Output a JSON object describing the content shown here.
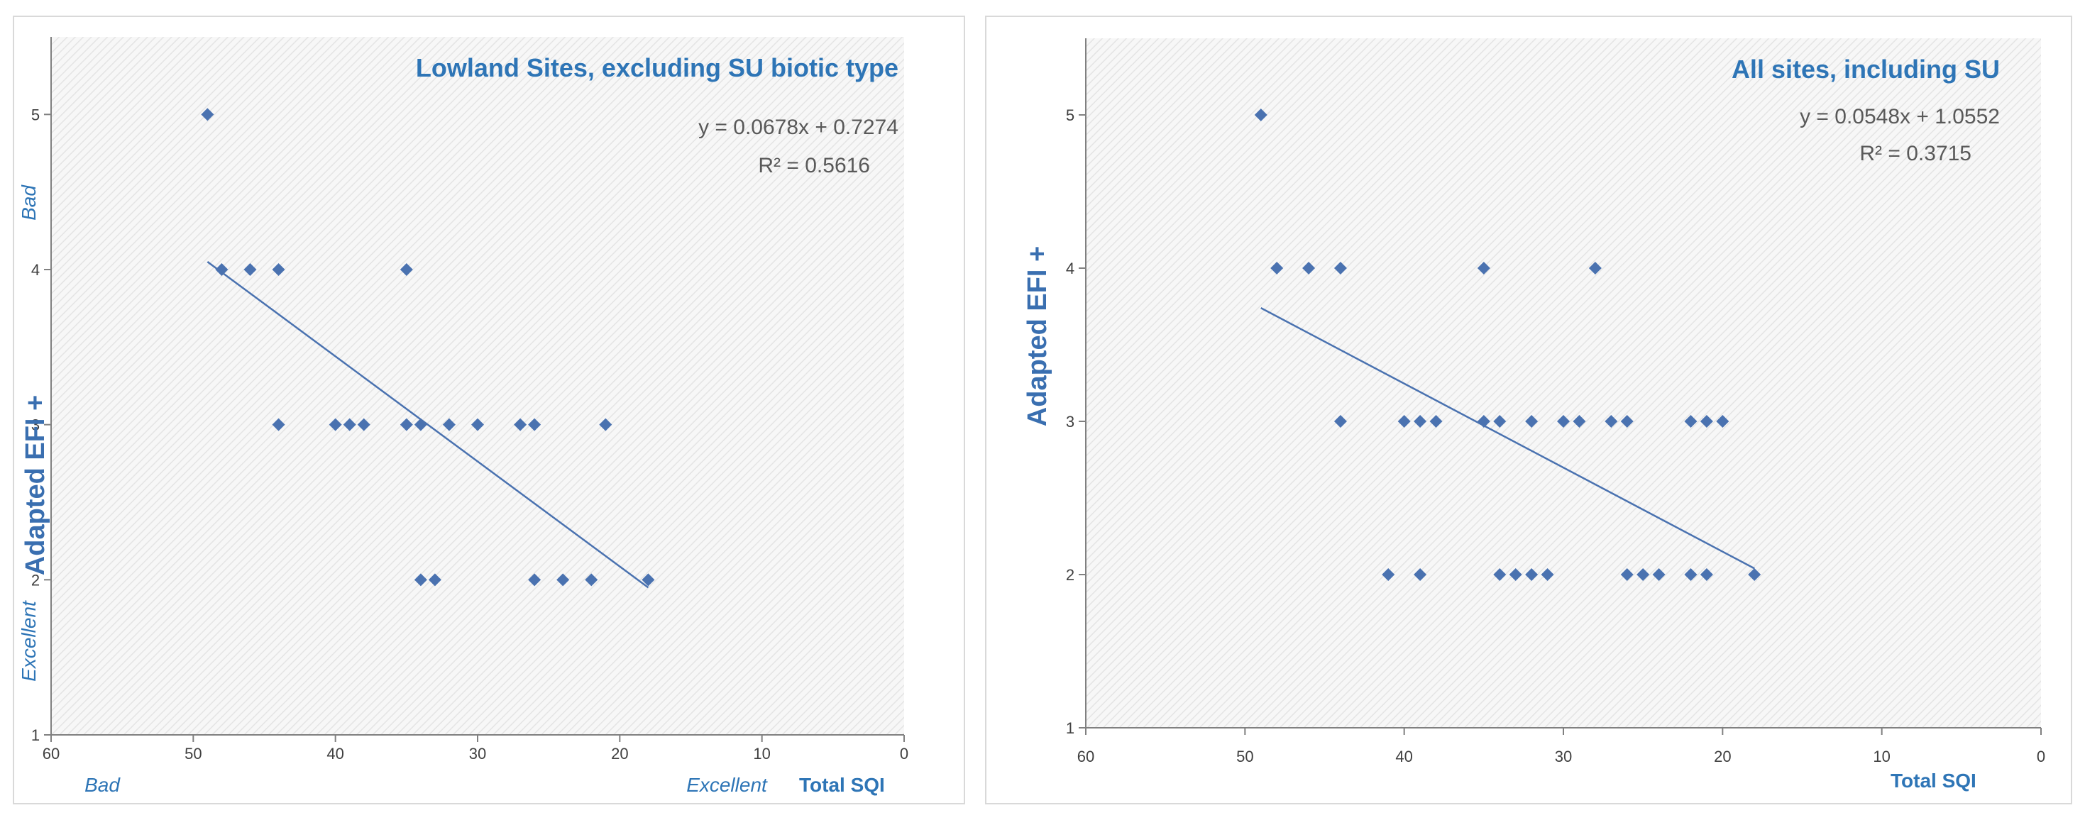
{
  "colors": {
    "marker": "#4a72b0",
    "trendline": "#4a72b0",
    "text_blue": "#2e75b6",
    "axis": "#808080",
    "plot_bg": "#f2f2f2"
  },
  "chart_data": [
    {
      "type": "scatter",
      "title": "Lowland Sites, excluding SU  biotic type",
      "equation": "y = 0.0678x + 0.7274",
      "r_squared": "R² = 0.5616",
      "xlabel": "Total SQI",
      "ylabel": "Adapted EFI +",
      "xlim": [
        60,
        0
      ],
      "ylim": [
        1,
        5.5
      ],
      "x_ticks": [
        "60",
        "50",
        "40",
        "30",
        "20",
        "10",
        "0"
      ],
      "y_ticks": [
        "1",
        "2",
        "3",
        "4",
        "5"
      ],
      "annotations": {
        "y_bad": "Bad",
        "y_excellent": "Excellent",
        "x_bad": "Bad",
        "x_excellent": "Excellent"
      },
      "points": [
        [
          49,
          5
        ],
        [
          48,
          4
        ],
        [
          46,
          4
        ],
        [
          44,
          4
        ],
        [
          35,
          4
        ],
        [
          44,
          3
        ],
        [
          40,
          3
        ],
        [
          39,
          3
        ],
        [
          38,
          3
        ],
        [
          35,
          3
        ],
        [
          34,
          3
        ],
        [
          32,
          3
        ],
        [
          30,
          3
        ],
        [
          27,
          3
        ],
        [
          26,
          3
        ],
        [
          21,
          3
        ],
        [
          34,
          2
        ],
        [
          33,
          2
        ],
        [
          26,
          2
        ],
        [
          24,
          2
        ],
        [
          22,
          2
        ],
        [
          18,
          2
        ]
      ],
      "trendline": {
        "x_from": 49,
        "y_from": 4.05,
        "x_to": 18,
        "y_to": 1.95
      }
    },
    {
      "type": "scatter",
      "title": "All sites, including SU",
      "equation": "y = 0.0548x + 1.0552",
      "r_squared": "R² = 0.3715",
      "xlabel": "Total SQI",
      "ylabel": "Adapted EFI +",
      "xlim": [
        60,
        0
      ],
      "ylim": [
        1,
        5.5
      ],
      "x_ticks": [
        "60",
        "50",
        "40",
        "30",
        "20",
        "10",
        "0"
      ],
      "y_ticks": [
        "1",
        "2",
        "3",
        "4",
        "5"
      ],
      "points": [
        [
          49,
          5
        ],
        [
          48,
          4
        ],
        [
          46,
          4
        ],
        [
          44,
          4
        ],
        [
          35,
          4
        ],
        [
          28,
          4
        ],
        [
          44,
          3
        ],
        [
          40,
          3
        ],
        [
          39,
          3
        ],
        [
          38,
          3
        ],
        [
          35,
          3
        ],
        [
          34,
          3
        ],
        [
          32,
          3
        ],
        [
          30,
          3
        ],
        [
          29,
          3
        ],
        [
          27,
          3
        ],
        [
          26,
          3
        ],
        [
          22,
          3
        ],
        [
          21,
          3
        ],
        [
          20,
          3
        ],
        [
          41,
          2
        ],
        [
          39,
          2
        ],
        [
          34,
          2
        ],
        [
          33,
          2
        ],
        [
          32,
          2
        ],
        [
          31,
          2
        ],
        [
          26,
          2
        ],
        [
          25,
          2
        ],
        [
          24,
          2
        ],
        [
          22,
          2
        ],
        [
          21,
          2
        ],
        [
          18,
          2
        ]
      ],
      "trendline": {
        "x_from": 49,
        "y_from": 3.74,
        "x_to": 18,
        "y_to": 2.04
      }
    }
  ]
}
